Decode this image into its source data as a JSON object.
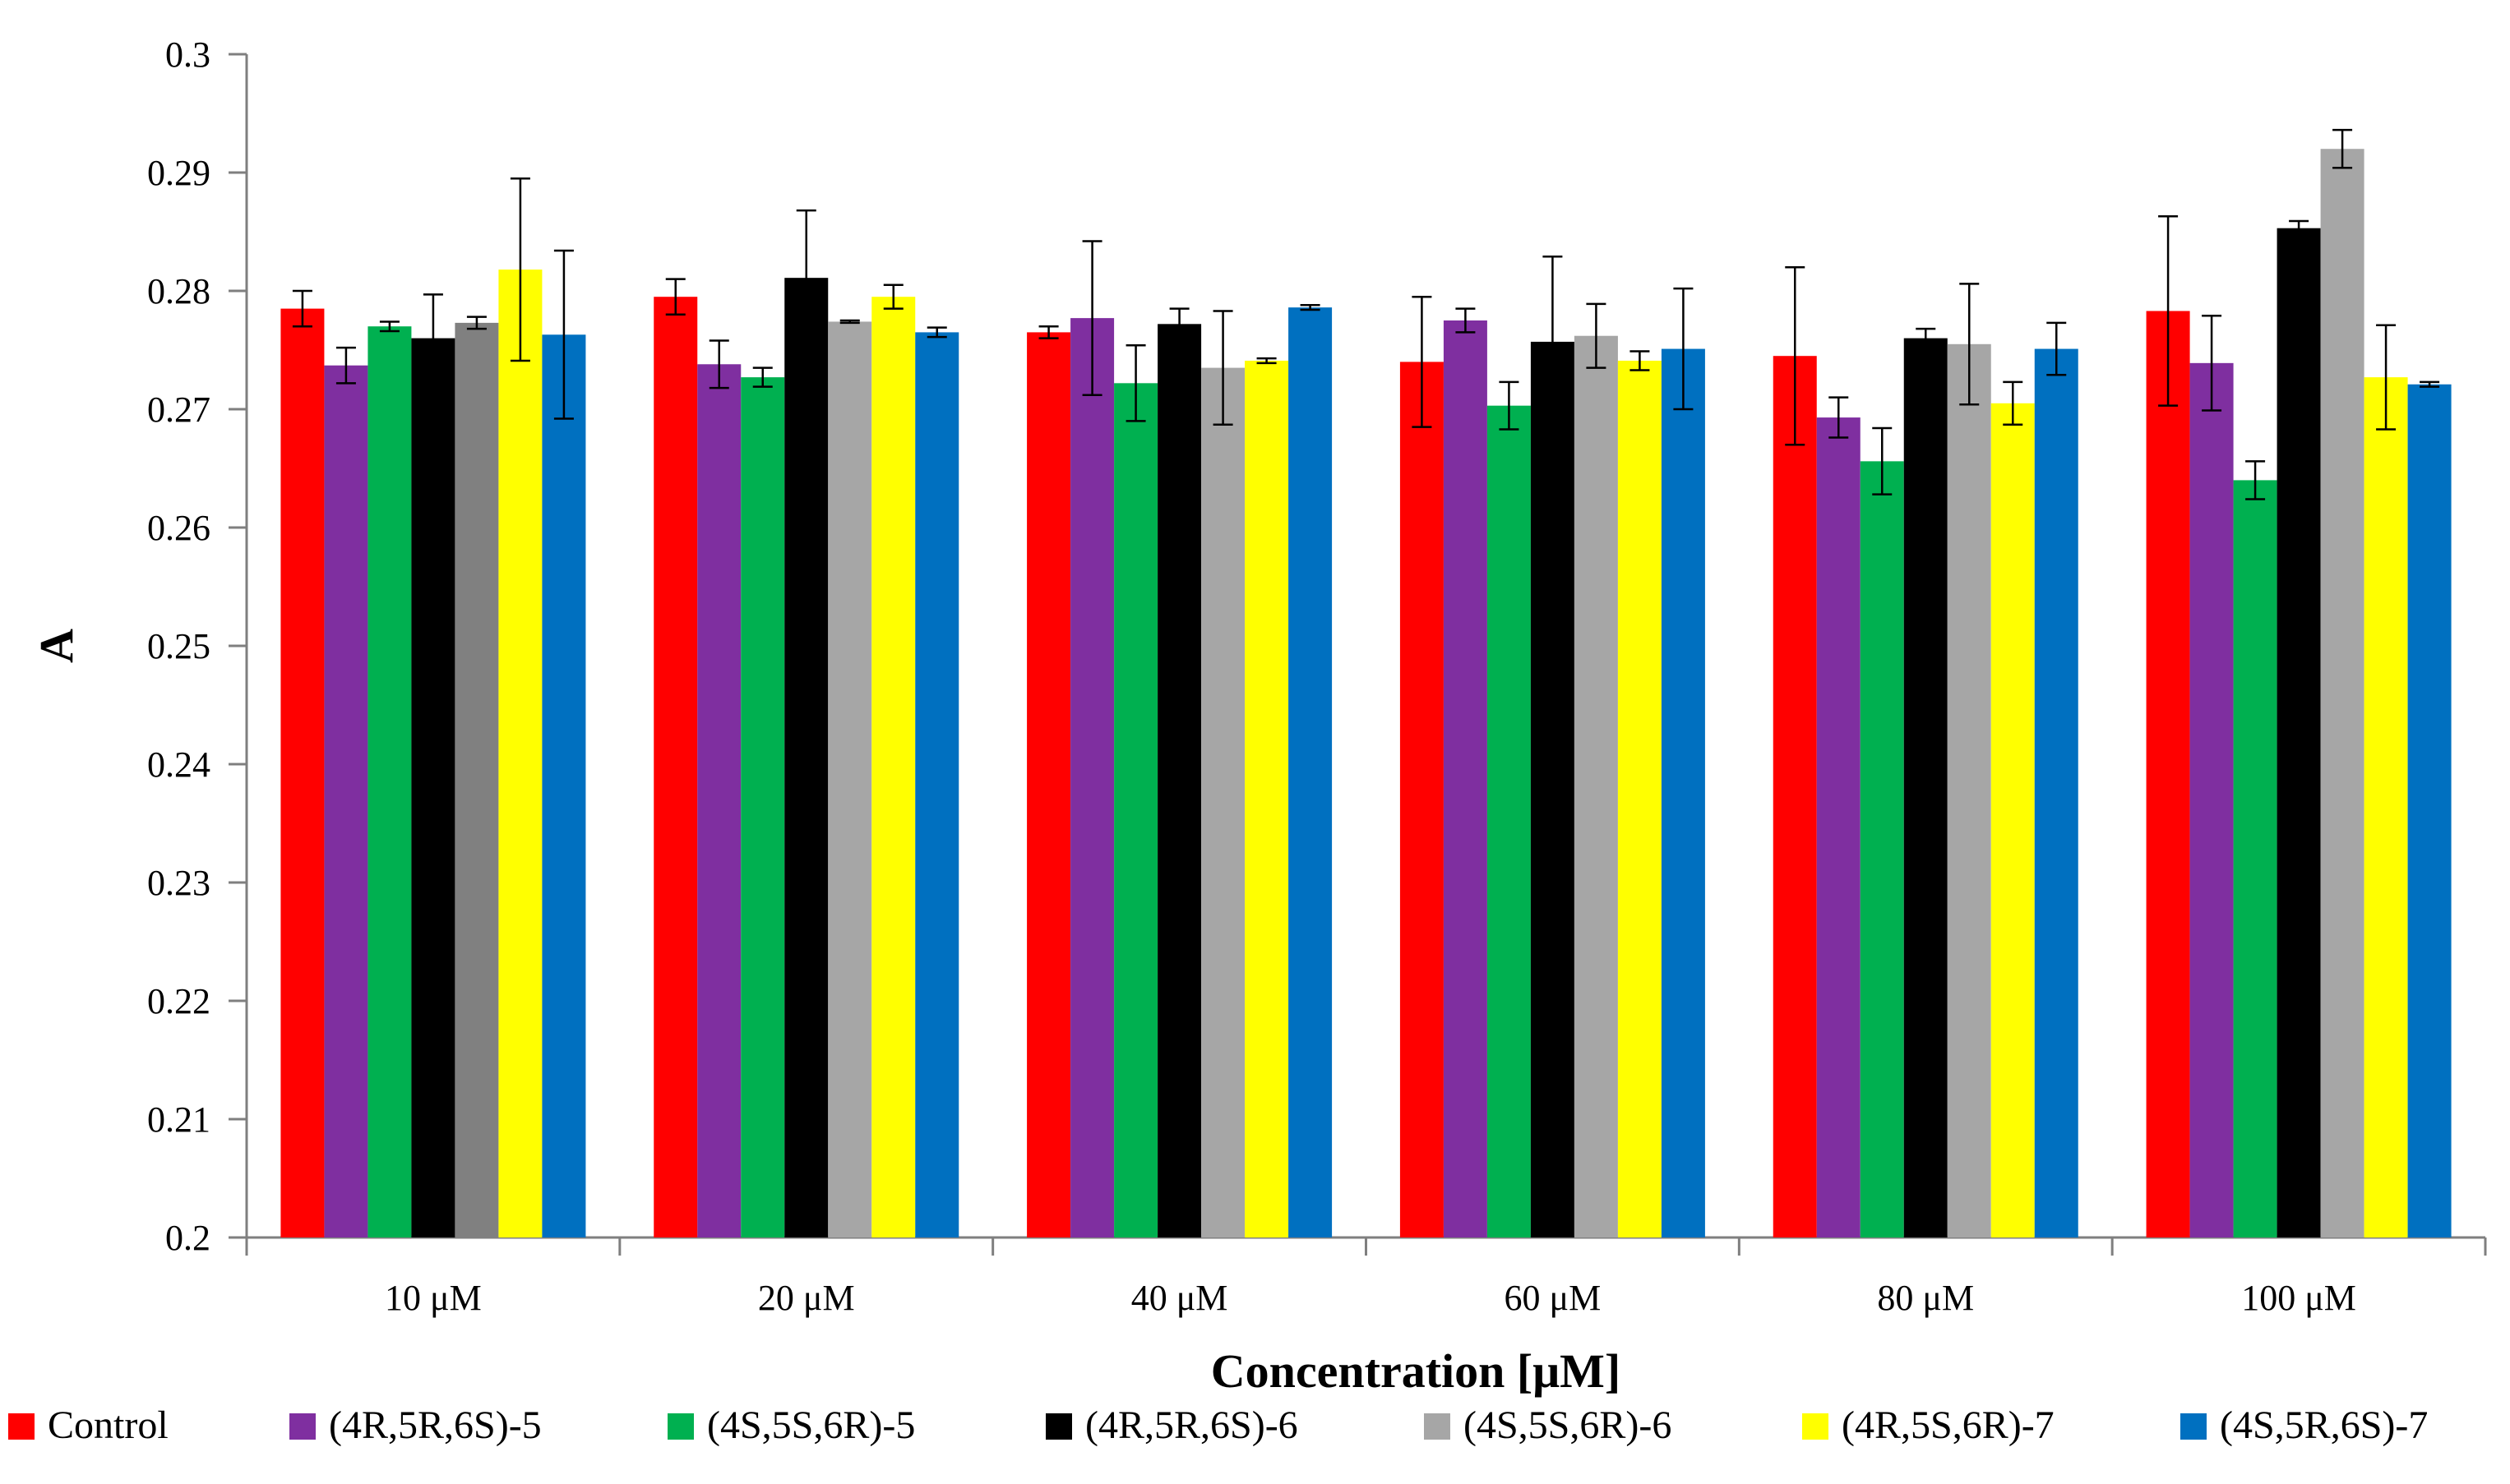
{
  "chart_data": {
    "type": "bar",
    "title": "",
    "xlabel": "Concentration [μM]",
    "ylabel": "A",
    "ylim": [
      0.2,
      0.3
    ],
    "yticks": [
      "0.2",
      "0.21",
      "0.22",
      "0.23",
      "0.24",
      "0.25",
      "0.26",
      "0.27",
      "0.28",
      "0.29",
      "0.3"
    ],
    "grid": false,
    "legend_position": "bottom",
    "categories": [
      "10 μM",
      "20 μM",
      "40 μM",
      "60 μM",
      "80 μM",
      "100 μM"
    ],
    "series": [
      {
        "name": "Control",
        "color": "#ff0000",
        "values": [
          0.2785,
          0.2795,
          0.2765,
          0.274,
          0.2745,
          0.2783
        ],
        "errors": [
          0.0015,
          0.0015,
          0.0005,
          0.0055,
          0.0075,
          0.008
        ]
      },
      {
        "name": "(4R,5R,6S)-5",
        "color": "#7f2fa0",
        "values": [
          0.2737,
          0.2738,
          0.2777,
          0.2775,
          0.2693,
          0.2739
        ],
        "errors": [
          0.0015,
          0.002,
          0.0065,
          0.001,
          0.0017,
          0.004
        ]
      },
      {
        "name": "(4S,5S,6R)-5",
        "color": "#00b050",
        "values": [
          0.277,
          0.2727,
          0.2722,
          0.2703,
          0.2656,
          0.264
        ],
        "errors": [
          0.0004,
          0.0008,
          0.0032,
          0.002,
          0.0028,
          0.0016
        ]
      },
      {
        "name": "(4R,5R,6S)-6",
        "color": "#000000",
        "values": [
          0.276,
          0.2811,
          0.2772,
          0.2757,
          0.276,
          0.2853
        ],
        "errors": [
          0.0037,
          0.0057,
          0.0013,
          0.0072,
          0.0008,
          0.0006
        ]
      },
      {
        "name": "(4S,5S,6R)-6",
        "color": "#a6a6a6",
        "values": [
          0.2773,
          0.2774,
          0.2735,
          0.2762,
          0.2755,
          0.292
        ],
        "errors": [
          0.0005,
          0.0001,
          0.0048,
          0.0027,
          0.0051,
          0.0016
        ]
      },
      {
        "name": "(4R,5S,6R)-7",
        "color": "#ffff00",
        "values": [
          0.2818,
          0.2795,
          0.2741,
          0.2741,
          0.2705,
          0.2727
        ],
        "errors": [
          0.0077,
          0.001,
          0.0002,
          0.0008,
          0.0018,
          0.0044
        ]
      },
      {
        "name": "(4S,5R,6S)-7",
        "color": "#0070c0",
        "values": [
          0.2763,
          0.2765,
          0.2786,
          0.2751,
          0.2751,
          0.2721
        ],
        "errors": [
          0.0071,
          0.0004,
          0.0002,
          0.0051,
          0.0022,
          0.0002
        ]
      }
    ]
  }
}
